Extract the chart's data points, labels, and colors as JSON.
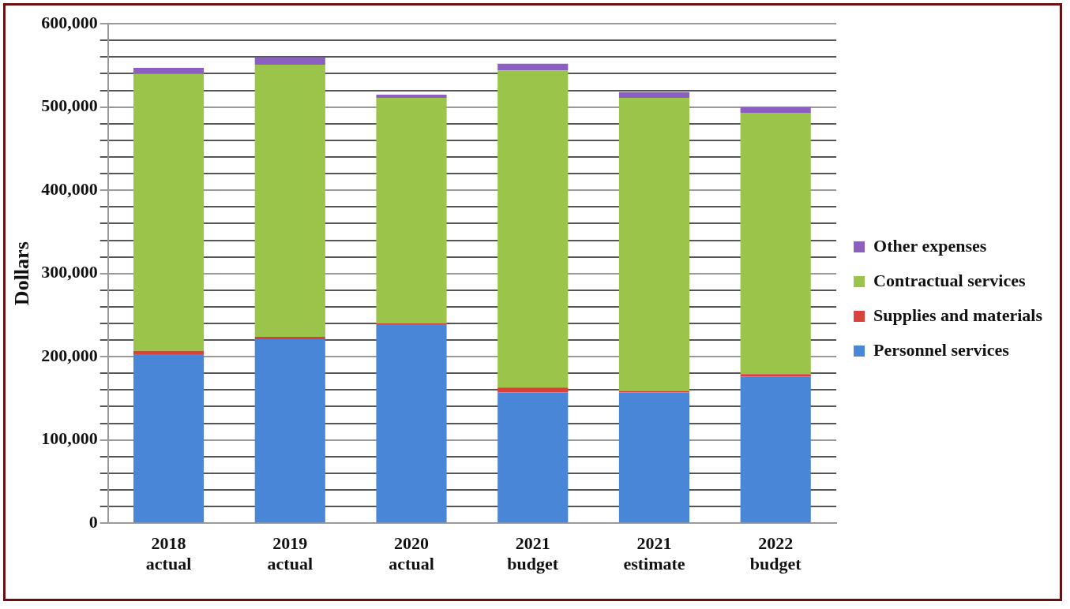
{
  "chart_data": {
    "type": "bar",
    "stacked": true,
    "ylabel": "Dollars",
    "categories": [
      "2018 actual",
      "2019 actual",
      "2020 actual",
      "2021 budget",
      "2021 estimate",
      "2022 budget"
    ],
    "series": [
      {
        "name": "Personnel services",
        "color": "#4a86d8",
        "values": [
          203000,
          221000,
          239000,
          157000,
          157000,
          176000
        ]
      },
      {
        "name": "Supplies and materials",
        "color": "#d9413b",
        "values": [
          4000,
          3000,
          1000,
          6000,
          2000,
          3000
        ]
      },
      {
        "name": "Contractual services",
        "color": "#9bc44a",
        "values": [
          333000,
          327000,
          271000,
          381000,
          352000,
          314000
        ]
      },
      {
        "name": "Other expenses",
        "color": "#8a5fc0",
        "values": [
          7000,
          9000,
          4000,
          8000,
          7000,
          7000
        ]
      }
    ],
    "ylim": [
      0,
      600000
    ],
    "yticks": [
      0,
      {
        "value": 20000,
        "label": null
      },
      {
        "value": 40000,
        "label": null
      },
      {
        "value": 60000,
        "label": null
      },
      {
        "value": 80000,
        "label": null
      },
      {
        "value": 100000,
        "label": "100,000"
      },
      {
        "value": 120000,
        "label": null
      },
      {
        "value": 140000,
        "label": null
      },
      {
        "value": 160000,
        "label": null
      },
      {
        "value": 180000,
        "label": null
      },
      {
        "value": 200000,
        "label": "200,000"
      },
      {
        "value": 220000,
        "label": null
      },
      {
        "value": 240000,
        "label": null
      },
      {
        "value": 260000,
        "label": null
      },
      {
        "value": 280000,
        "label": null
      },
      {
        "value": 300000,
        "label": "300,000"
      },
      {
        "value": 320000,
        "label": null
      },
      {
        "value": 340000,
        "label": null
      },
      {
        "value": 360000,
        "label": null
      },
      {
        "value": 380000,
        "label": null
      },
      {
        "value": 400000,
        "label": "400,000"
      },
      {
        "value": 420000,
        "label": null
      },
      {
        "value": 440000,
        "label": null
      },
      {
        "value": 460000,
        "label": null
      },
      {
        "value": 480000,
        "label": null
      },
      {
        "value": 500000,
        "label": "500,000"
      },
      {
        "value": 520000,
        "label": null
      },
      {
        "value": 540000,
        "label": null
      },
      {
        "value": 560000,
        "label": null
      },
      {
        "value": 580000,
        "label": null
      },
      {
        "value": 600000,
        "label": "600,000"
      }
    ],
    "grid": "y",
    "legend": "right"
  }
}
